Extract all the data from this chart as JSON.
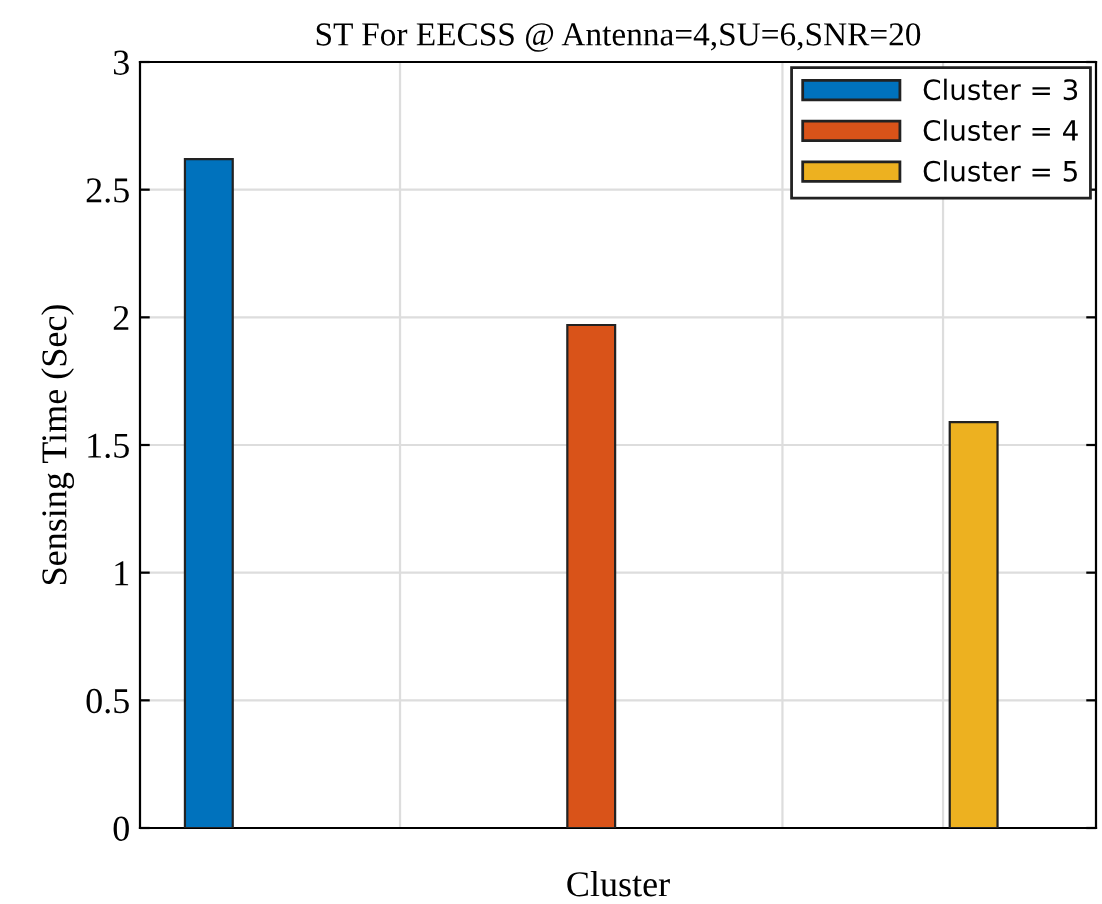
{
  "chart_data": {
    "type": "bar",
    "title": "ST For EECSS @ Antenna=4,SU=6,SNR=20",
    "xlabel": "Cluster",
    "ylabel": "Sensing Time (Sec)",
    "categories": [
      null,
      null,
      null
    ],
    "series": [
      {
        "name": "Cluster = 3",
        "color": "#0072bd",
        "values": [
          2.62,
          null,
          null
        ]
      },
      {
        "name": "Cluster = 4",
        "color": "#d95319",
        "values": [
          null,
          1.97,
          null
        ]
      },
      {
        "name": "Cluster = 5",
        "color": "#edb120",
        "values": [
          null,
          null,
          1.59
        ]
      }
    ],
    "ylim": [
      0,
      3
    ],
    "yticks": [
      0,
      0.5,
      1,
      1.5,
      2,
      2.5,
      3
    ],
    "grid": true,
    "legend": "top right"
  }
}
